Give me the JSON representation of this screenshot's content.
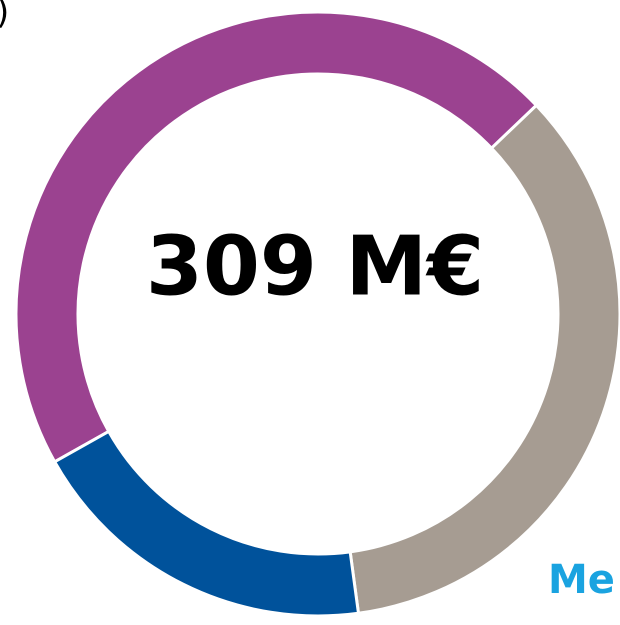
{
  "chart_data": {
    "type": "donut",
    "center_label": "309 M€",
    "top_left_text": ")",
    "bottom_right_text": "Me",
    "categories": [
      null,
      null,
      null
    ],
    "values": [
      46,
      35,
      19
    ],
    "colors": [
      "#9b4290",
      "#a69c92",
      "#00529b"
    ]
  }
}
